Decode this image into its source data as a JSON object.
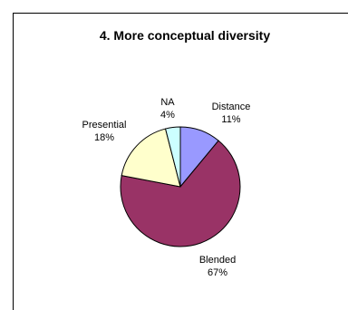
{
  "chart_data": {
    "type": "pie",
    "title": "4. More conceptual diversity",
    "slices": [
      {
        "name": "Distance",
        "value": 11,
        "label": "11%",
        "color": "#9999ff"
      },
      {
        "name": "Blended",
        "value": 67,
        "label": "67%",
        "color": "#993366"
      },
      {
        "name": "Presential",
        "value": 18,
        "label": "18%",
        "color": "#ffffcc"
      },
      {
        "name": "NA",
        "value": 4,
        "label": "4%",
        "color": "#ccffff"
      }
    ],
    "start_position": "12 o'clock",
    "direction": "clockwise",
    "legend": "none",
    "data_labels": "outside"
  }
}
